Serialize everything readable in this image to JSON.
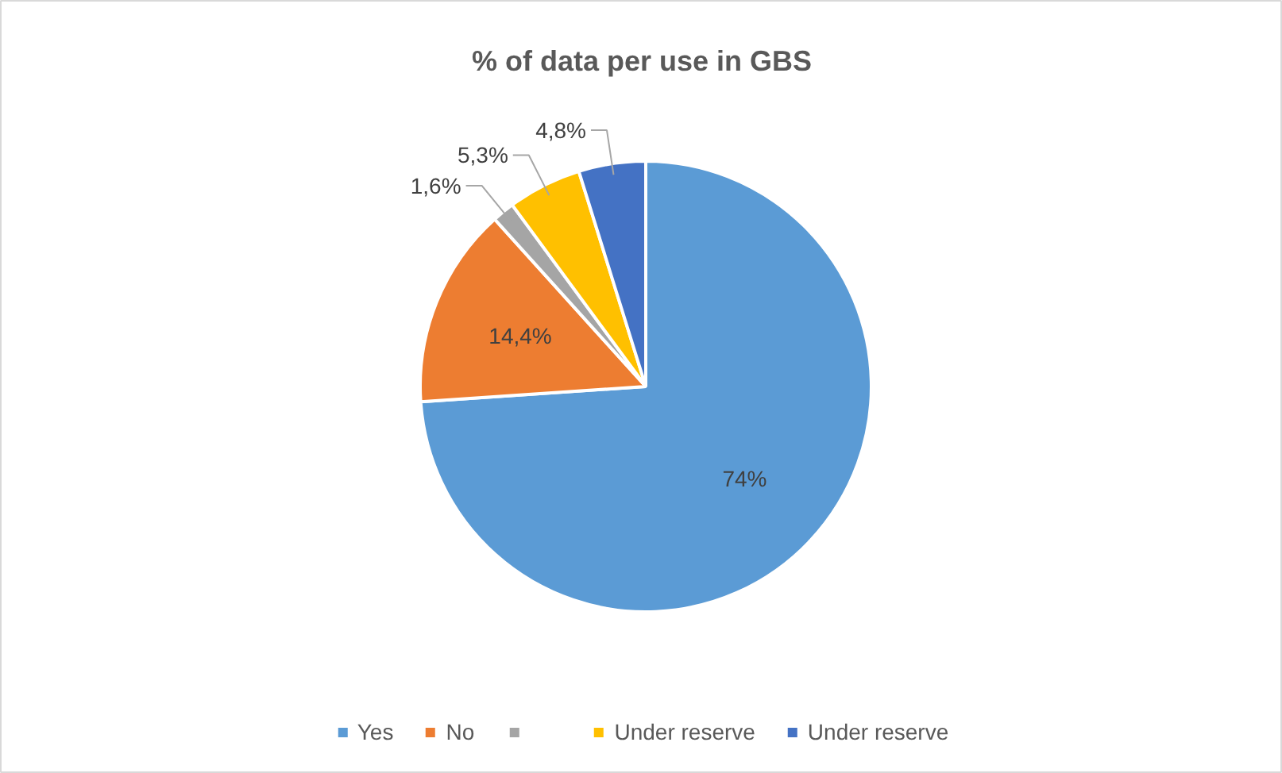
{
  "chart_data": {
    "type": "pie",
    "title": "% of data per use in GBS",
    "categories": [
      "Yes",
      "No",
      null,
      "Under reserve",
      "Under reserve"
    ],
    "values": [
      74,
      14.4,
      1.6,
      5.3,
      4.8
    ],
    "colors": [
      "#5b9bd5",
      "#ed7d31",
      "#a5a5a5",
      "#ffc000",
      "#4472c4"
    ],
    "value_labels": [
      "74%",
      "14,4%",
      "1,6%",
      "5,3%",
      "4,8%"
    ],
    "legend": "bottom"
  }
}
